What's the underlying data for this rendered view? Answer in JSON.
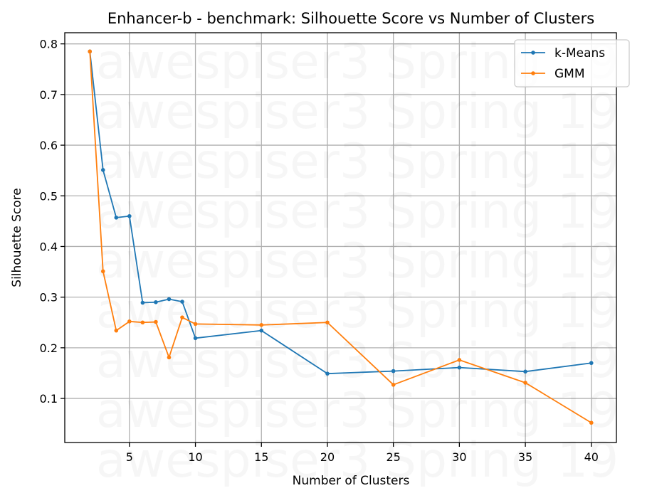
{
  "chart_data": {
    "type": "line",
    "title": "Enhancer-b - benchmark: Silhouette Score vs Number of Clusters",
    "xlabel": "Number of Clusters",
    "ylabel": "Silhouette Score",
    "x": [
      2,
      3,
      4,
      5,
      6,
      7,
      8,
      9,
      10,
      15,
      20,
      25,
      30,
      35,
      40
    ],
    "xlim": [
      0.1,
      41.9
    ],
    "ylim": [
      0.013,
      0.822
    ],
    "xticks": [
      5,
      10,
      15,
      20,
      25,
      30,
      35,
      40
    ],
    "yticks": [
      0.1,
      0.2,
      0.3,
      0.4,
      0.5,
      0.6,
      0.7,
      0.8
    ],
    "xtick_labels": [
      "5",
      "10",
      "15",
      "20",
      "25",
      "30",
      "35",
      "40"
    ],
    "ytick_labels": [
      "0.1",
      "0.2",
      "0.3",
      "0.4",
      "0.5",
      "0.6",
      "0.7",
      "0.8"
    ],
    "grid": true,
    "legend_position": "top-right",
    "series": [
      {
        "name": "k-Means",
        "color": "#1f77b4",
        "values": [
          0.785,
          0.551,
          0.457,
          0.46,
          0.289,
          0.29,
          0.296,
          0.291,
          0.219,
          0.234,
          0.149,
          0.154,
          0.161,
          0.153,
          0.17
        ]
      },
      {
        "name": "GMM",
        "color": "#ff7f0e",
        "values": [
          0.785,
          0.351,
          0.234,
          0.252,
          0.25,
          0.251,
          0.181,
          0.26,
          0.247,
          0.245,
          0.25,
          0.127,
          0.176,
          0.131,
          0.052
        ]
      }
    ]
  },
  "watermark": {
    "text": "awespiser3 Spring 19"
  }
}
